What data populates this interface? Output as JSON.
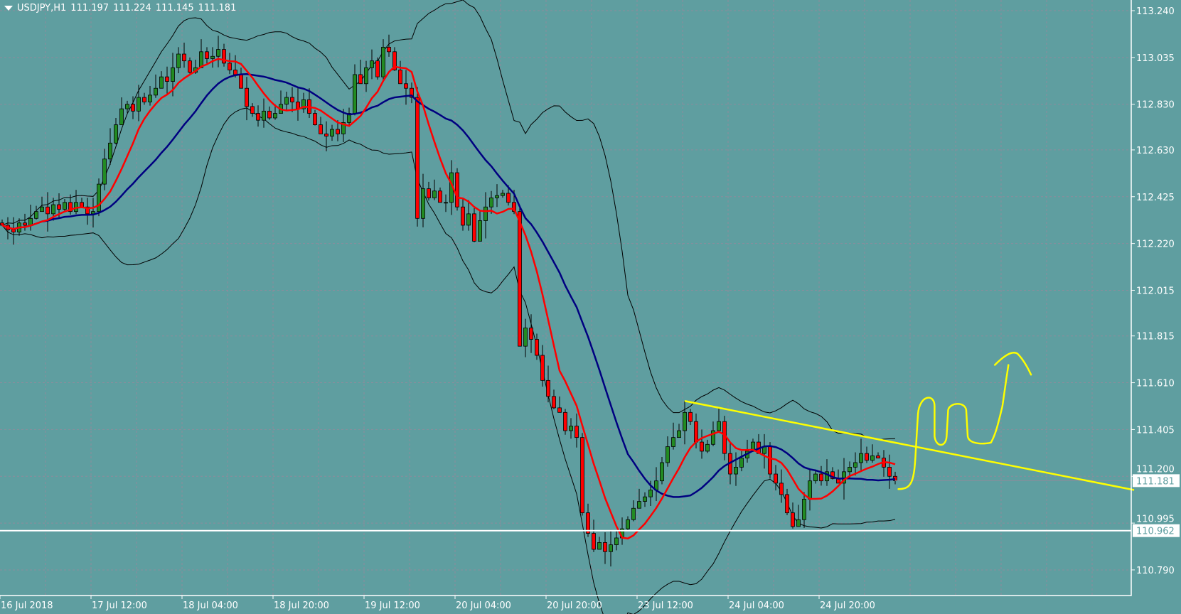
{
  "header": {
    "symbol": "USDJPY,H1",
    "open": "111.197",
    "high": "111.224",
    "low": "111.145",
    "close": "111.181"
  },
  "colors": {
    "background": "#5F9EA0",
    "bull": "#228B22",
    "bear": "#FF0000",
    "fast_ma": "#FF0000",
    "slow_ma": "#000080",
    "bands": "#000000",
    "grid": "#8C8C9C",
    "trendline": "#FFFF00",
    "support_line": "#FFFFFF"
  },
  "price_axis": {
    "labels": [
      "113.240",
      "113.035",
      "112.830",
      "112.630",
      "112.425",
      "112.220",
      "112.015",
      "111.815",
      "111.610",
      "111.405",
      "111.200",
      "110.995",
      "110.790"
    ]
  },
  "time_axis": {
    "labels": [
      "16 Jul 2018",
      "17 Jul 12:00",
      "18 Jul 04:00",
      "18 Jul 20:00",
      "19 Jul 12:00",
      "20 Jul 04:00",
      "20 Jul 20:00",
      "23 Jul 12:00",
      "24 Jul 04:00",
      "24 Jul 20:00"
    ]
  },
  "tags": {
    "current_price": "111.181",
    "support_price": "110.962"
  },
  "chart_data": {
    "type": "candlestick",
    "timeframe": "H1",
    "ylim": [
      110.678,
      113.24
    ],
    "grid": true,
    "indicators": [
      "fast moving average (red)",
      "slow moving average (navy)",
      "bollinger bands (black)"
    ],
    "closes": [
      112.3,
      112.28,
      112.27,
      112.31,
      112.3,
      112.33,
      112.36,
      112.38,
      112.35,
      112.39,
      112.37,
      112.4,
      112.36,
      112.4,
      112.38,
      112.35,
      112.36,
      112.48,
      112.59,
      112.66,
      112.74,
      112.81,
      112.83,
      112.8,
      112.86,
      112.84,
      112.87,
      112.9,
      112.95,
      112.93,
      112.99,
      113.05,
      113.02,
      112.97,
      112.99,
      113.06,
      113.03,
      113.04,
      113.07,
      113.01,
      112.98,
      112.96,
      112.9,
      112.82,
      112.79,
      112.76,
      112.8,
      112.77,
      112.79,
      112.83,
      112.86,
      112.84,
      112.81,
      112.85,
      112.79,
      112.74,
      112.7,
      112.69,
      112.72,
      112.7,
      112.75,
      112.79,
      112.96,
      112.92,
      112.99,
      113.02,
      112.95,
      113.08,
      113.06,
      112.98,
      112.92,
      112.9,
      112.86,
      112.33,
      112.46,
      112.42,
      112.45,
      112.4,
      112.4,
      112.53,
      112.38,
      112.3,
      112.35,
      112.23,
      112.32,
      112.38,
      112.42,
      112.43,
      112.44,
      112.4,
      112.36,
      111.77,
      111.85,
      111.8,
      111.73,
      111.62,
      111.55,
      111.5,
      111.48,
      111.4,
      111.42,
      111.37,
      111.04,
      110.95,
      110.88,
      110.91,
      110.87,
      110.9,
      110.93,
      110.97,
      111.01,
      111.06,
      111.09,
      111.11,
      111.14,
      111.18,
      111.26,
      111.33,
      111.37,
      111.4,
      111.48,
      111.44,
      111.35,
      111.31,
      111.34,
      111.4,
      111.44,
      111.3,
      111.21,
      111.24,
      111.28,
      111.31,
      111.35,
      111.3,
      111.33,
      111.21,
      111.17,
      111.12,
      111.04,
      110.98,
      111.01,
      111.1,
      111.18,
      111.21,
      111.18,
      111.22,
      111.19,
      111.17,
      111.22,
      111.24,
      111.26,
      111.3,
      111.27,
      111.29,
      111.28,
      111.24,
      111.2,
      111.181
    ],
    "horizontal_line": 110.962,
    "trendline": {
      "from_bar": 120,
      "from_price": 111.53,
      "to_bar": 199,
      "to_price": 111.14
    }
  }
}
